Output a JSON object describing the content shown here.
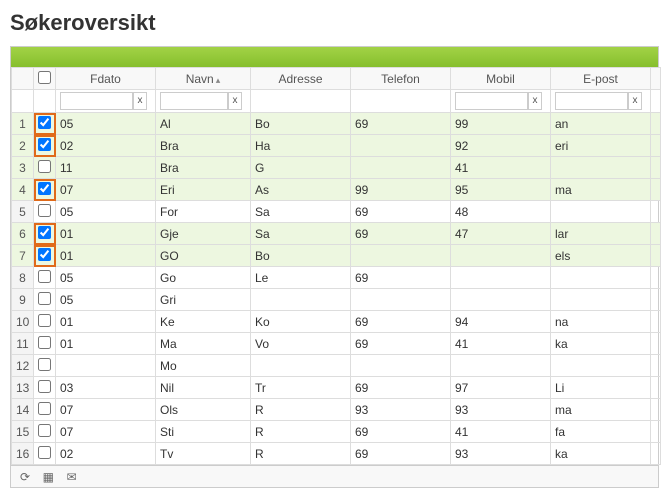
{
  "title": "Søkeroversikt",
  "columns": {
    "fdato": "Fdato",
    "navn": "Navn",
    "adresse": "Adresse",
    "telefon": "Telefon",
    "mobil": "Mobil",
    "epost": "E-post"
  },
  "sort_indicator": "▴",
  "filter_clear": "x",
  "rows": [
    {
      "n": 1,
      "checked": true,
      "green": true,
      "fdato": "05",
      "navn": "Al",
      "adresse": "Bo",
      "telefon": "69",
      "mobil": "99",
      "epost": "an"
    },
    {
      "n": 2,
      "checked": true,
      "green": true,
      "fdato": "02",
      "navn": "Bra",
      "adresse": "Ha",
      "telefon": "",
      "mobil": "92",
      "epost": "eri"
    },
    {
      "n": 3,
      "checked": false,
      "green": true,
      "fdato": "11",
      "navn": "Bra",
      "adresse": "G",
      "telefon": "",
      "mobil": "41",
      "epost": ""
    },
    {
      "n": 4,
      "checked": true,
      "green": true,
      "fdato": "07",
      "navn": "Eri",
      "adresse": "As",
      "telefon": "99",
      "mobil": "95",
      "epost": "ma"
    },
    {
      "n": 5,
      "checked": false,
      "green": false,
      "fdato": "05",
      "navn": "For",
      "adresse": "Sa",
      "telefon": "69",
      "mobil": "48",
      "epost": ""
    },
    {
      "n": 6,
      "checked": true,
      "green": true,
      "fdato": "01",
      "navn": "Gje",
      "adresse": "Sa",
      "telefon": "69",
      "mobil": "47",
      "epost": "lar"
    },
    {
      "n": 7,
      "checked": true,
      "green": true,
      "fdato": "01",
      "navn": "GO",
      "adresse": "Bo",
      "telefon": "",
      "mobil": "",
      "epost": "els"
    },
    {
      "n": 8,
      "checked": false,
      "green": false,
      "fdato": "05",
      "navn": "Go",
      "adresse": "Le",
      "telefon": "69",
      "mobil": "",
      "epost": ""
    },
    {
      "n": 9,
      "checked": false,
      "green": false,
      "fdato": "05",
      "navn": "Gri",
      "adresse": "",
      "telefon": "",
      "mobil": "",
      "epost": ""
    },
    {
      "n": 10,
      "checked": false,
      "green": false,
      "fdato": "01",
      "navn": "Ke",
      "adresse": "Ko",
      "telefon": "69",
      "mobil": "94",
      "epost": "na"
    },
    {
      "n": 11,
      "checked": false,
      "green": false,
      "fdato": "01",
      "navn": "Ma",
      "adresse": "Vo",
      "telefon": "69",
      "mobil": "41",
      "epost": "ka"
    },
    {
      "n": 12,
      "checked": false,
      "green": false,
      "fdato": "",
      "navn": "Mo",
      "adresse": "",
      "telefon": "",
      "mobil": "",
      "epost": ""
    },
    {
      "n": 13,
      "checked": false,
      "green": false,
      "fdato": "03",
      "navn": "Nil",
      "adresse": "Tr",
      "telefon": "69",
      "mobil": "97",
      "epost": "Li"
    },
    {
      "n": 14,
      "checked": false,
      "green": false,
      "fdato": "07",
      "navn": "Ols",
      "adresse": "R",
      "telefon": "93",
      "mobil": "93",
      "epost": "ma"
    },
    {
      "n": 15,
      "checked": false,
      "green": false,
      "fdato": "07",
      "navn": "Sti",
      "adresse": "R",
      "telefon": "69",
      "mobil": "41",
      "epost": "fa"
    },
    {
      "n": 16,
      "checked": false,
      "green": false,
      "fdato": "02",
      "navn": "Tv",
      "adresse": "R",
      "telefon": "69",
      "mobil": "93",
      "epost": "ka"
    }
  ],
  "footer_icons": {
    "refresh": "⟳",
    "grid": "▦",
    "mail": "✉"
  }
}
